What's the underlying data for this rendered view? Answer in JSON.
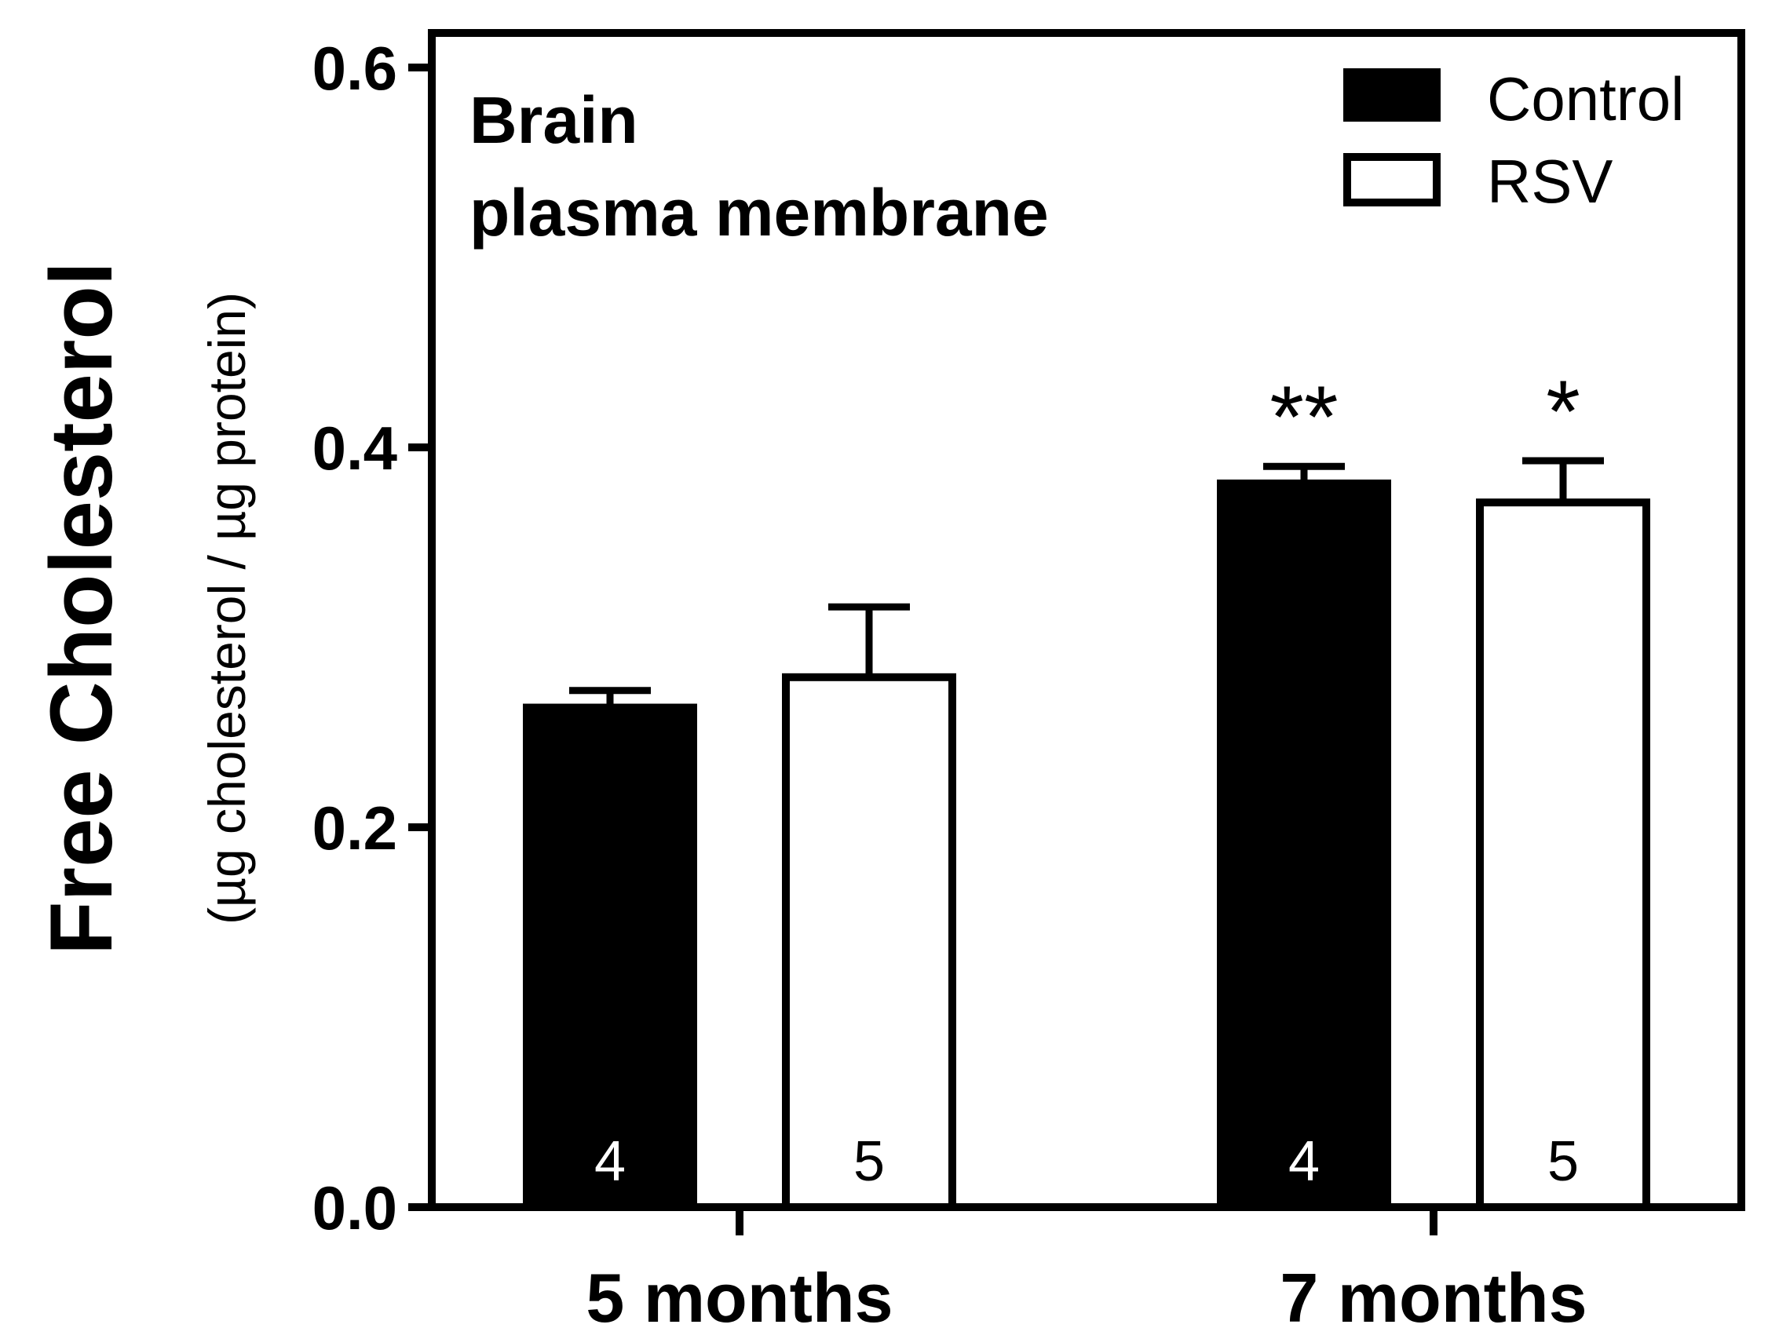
{
  "chart_data": {
    "type": "bar",
    "title": [
      "Brain",
      "plasma membrane"
    ],
    "ylabel": "Free Cholesterol",
    "ylabel_unit": "(µg cholesterol / µg protein)",
    "xlabel": "",
    "ylim": [
      0,
      0.6
    ],
    "yticks": [
      0.0,
      0.2,
      0.4,
      0.6
    ],
    "ytick_labels": [
      "0.0",
      "0.2",
      "0.4",
      "0.6"
    ],
    "categories": [
      "5 months",
      "7 months"
    ],
    "series": [
      {
        "name": "Control",
        "fill": "#000000",
        "values": [
          0.263,
          0.381
        ],
        "errors": [
          0.009,
          0.009
        ],
        "n_labels": [
          "4",
          "4"
        ],
        "significance": [
          "",
          "**"
        ]
      },
      {
        "name": "RSV",
        "fill": "#ffffff",
        "values": [
          0.279,
          0.371
        ],
        "errors": [
          0.037,
          0.022
        ],
        "n_labels": [
          "5",
          "5"
        ],
        "significance": [
          "",
          "*"
        ]
      }
    ],
    "legend_position": "top-right",
    "grid": false
  }
}
